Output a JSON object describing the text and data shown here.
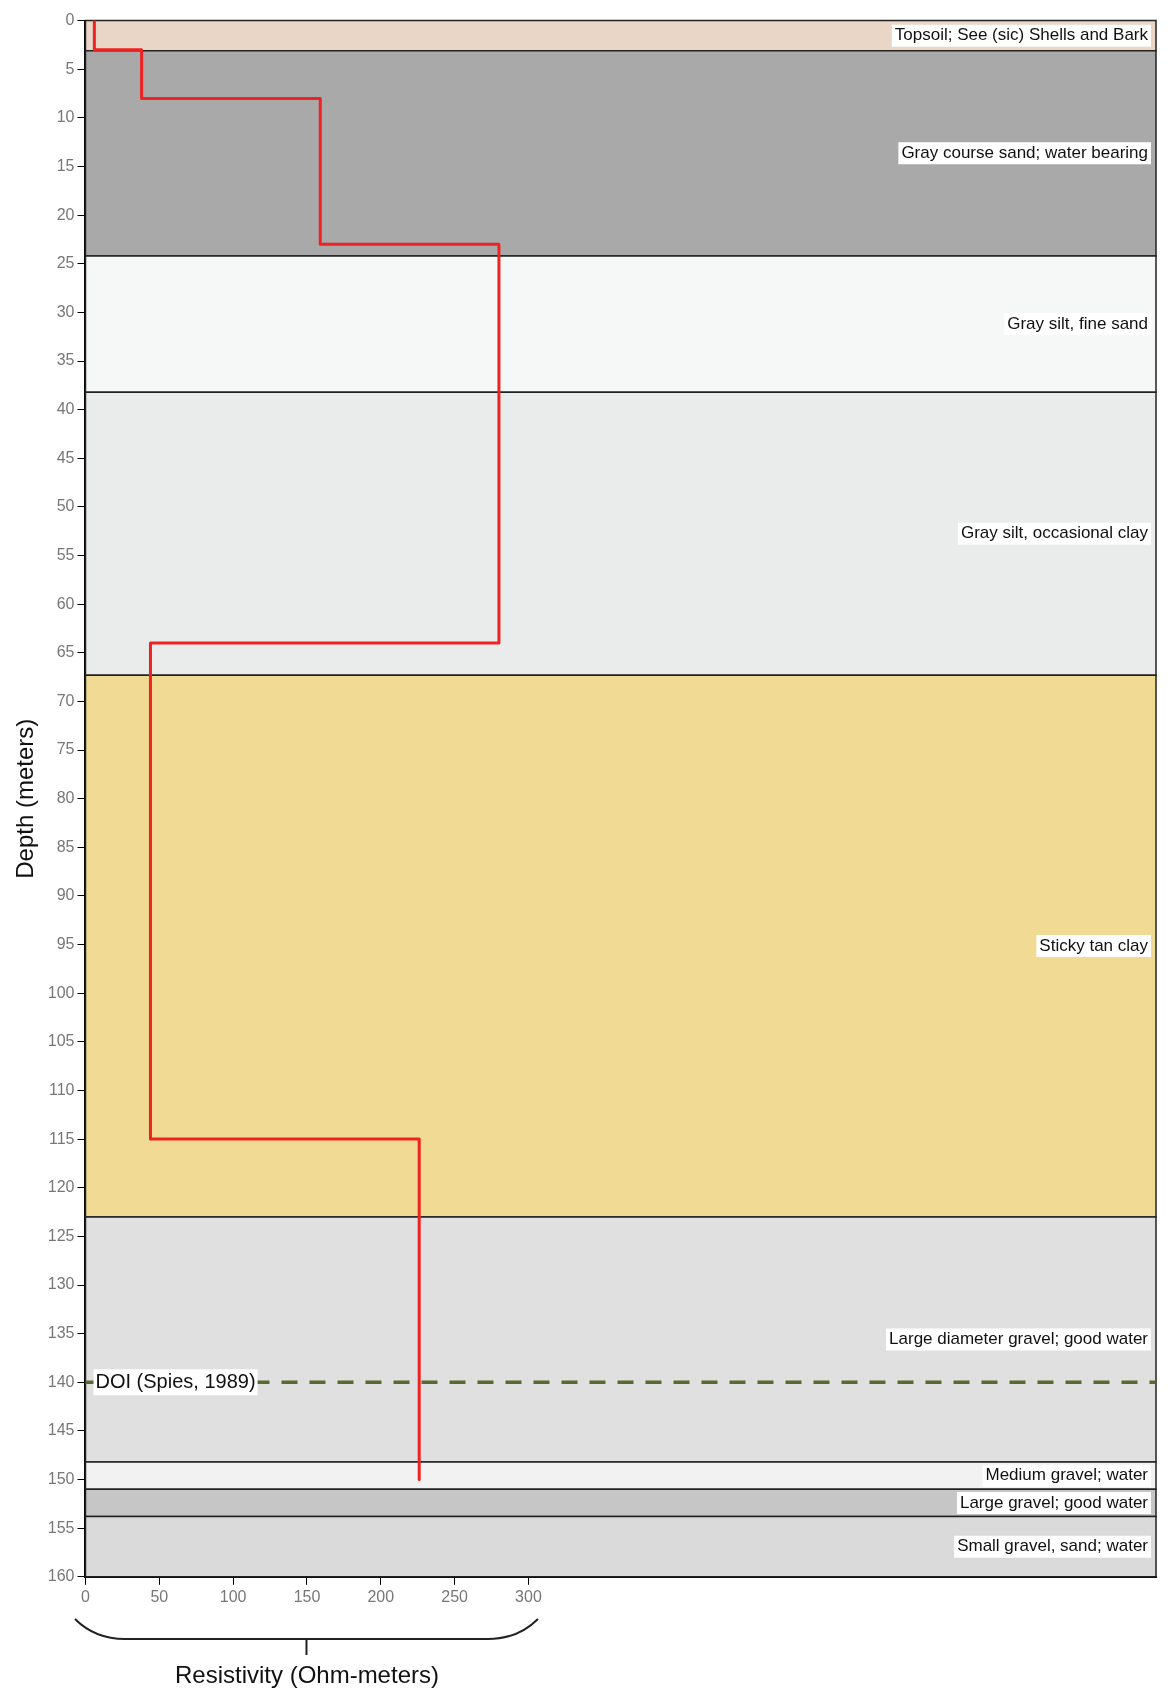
{
  "chart_data": {
    "type": "line",
    "xlabel": "Resistivity (Ohm-meters)",
    "ylabel": "Depth (meters)",
    "xlim": [
      0,
      725
    ],
    "xticks": [
      0,
      50,
      100,
      150,
      200,
      250,
      300
    ],
    "ylim": [
      160,
      0
    ],
    "yticks": [
      0,
      5,
      10,
      15,
      20,
      25,
      30,
      35,
      40,
      45,
      50,
      55,
      60,
      65,
      70,
      75,
      80,
      85,
      90,
      95,
      100,
      105,
      110,
      115,
      120,
      125,
      130,
      135,
      140,
      145,
      150,
      155,
      160
    ],
    "legend": false,
    "marker": "none",
    "line_style": "solid",
    "series": [
      {
        "color": "#ee2222",
        "x": [
          6,
          6,
          38,
          38,
          159,
          159,
          280,
          280,
          44,
          44,
          226,
          226
        ],
        "values": [
          0,
          3,
          3,
          8,
          8,
          23,
          23,
          64,
          64,
          115,
          115,
          150
        ]
      }
    ],
    "bands": [
      {
        "axis": "y",
        "from": 0,
        "to": 3.1,
        "label": "Topsoil; See (sic) Shells and Bark",
        "color": "#e9d6c6"
      },
      {
        "axis": "y",
        "from": 3.1,
        "to": 24.2,
        "label": "Gray course sand; water bearing",
        "color": "#a9a9a9"
      },
      {
        "axis": "y",
        "from": 24.2,
        "to": 38.2,
        "label": "Gray silt, fine sand",
        "color": "#f6f7f7"
      },
      {
        "axis": "y",
        "from": 38.2,
        "to": 67.3,
        "label": "Gray silt, occasional clay",
        "color": "#eaecec"
      },
      {
        "axis": "y",
        "from": 67.3,
        "to": 123,
        "label": "Sticky tan clay",
        "color": "#f0da94"
      },
      {
        "axis": "y",
        "from": 123,
        "to": 148.2,
        "label": "Large diameter gravel; good water",
        "color": "#e0e0e0"
      },
      {
        "axis": "y",
        "from": 148.2,
        "to": 151,
        "label": "Medium gravel; water",
        "color": "#f2f2f2"
      },
      {
        "axis": "y",
        "from": 151,
        "to": 153.8,
        "label": "Large gravel; good water",
        "color": "#c6c6c6"
      },
      {
        "axis": "y",
        "from": 153.8,
        "to": 160,
        "label": "Small gravel, sand; water",
        "color": "#dadada"
      }
    ],
    "ref_lines": [
      {
        "axis": "y",
        "value": 140,
        "label": "DOI (Spies, 1989)",
        "color": "#556b2f",
        "line_style": "dashed"
      }
    ]
  }
}
